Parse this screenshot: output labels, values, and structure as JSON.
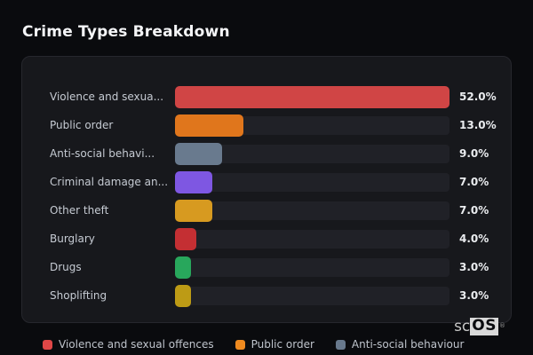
{
  "title": "Crime Types Breakdown",
  "chart_data": {
    "type": "bar",
    "orientation": "horizontal",
    "title": "Crime Types Breakdown",
    "categories": [
      "Violence and sexua...",
      "Public order",
      "Anti-social behavi...",
      "Criminal damage an...",
      "Other theft",
      "Burglary",
      "Drugs",
      "Shoplifting"
    ],
    "values": [
      52.0,
      13.0,
      9.0,
      7.0,
      7.0,
      4.0,
      3.0,
      3.0
    ],
    "value_labels": [
      "52.0%",
      "13.0%",
      "9.0%",
      "7.0%",
      "7.0%",
      "4.0%",
      "3.0%",
      "3.0%"
    ],
    "bar_colors": [
      "#d04545",
      "#e0761c",
      "#697a8e",
      "#7e57e2",
      "#d79a20",
      "#c42f33",
      "#28a75c",
      "#bd9b15"
    ],
    "max_value": 52,
    "unit": "%",
    "grid": false,
    "legend_position": "bottom",
    "legend": [
      {
        "label": "Violence and sexual offences",
        "color": "#e04747"
      },
      {
        "label": "Public order",
        "color": "#ef8a1f"
      },
      {
        "label": "Anti-social behaviour",
        "color": "#68798d"
      }
    ]
  },
  "watermark": {
    "prefix": "sc",
    "box": "OS",
    "reg": "®"
  },
  "colors": {
    "page_background": "#0a0b0e",
    "panel_background": "#17181c",
    "panel_border": "#26272d",
    "track": "#202127",
    "label_text": "#c6cbd3",
    "value_text": "#eaecef",
    "title_text": "#f4f5f7"
  }
}
